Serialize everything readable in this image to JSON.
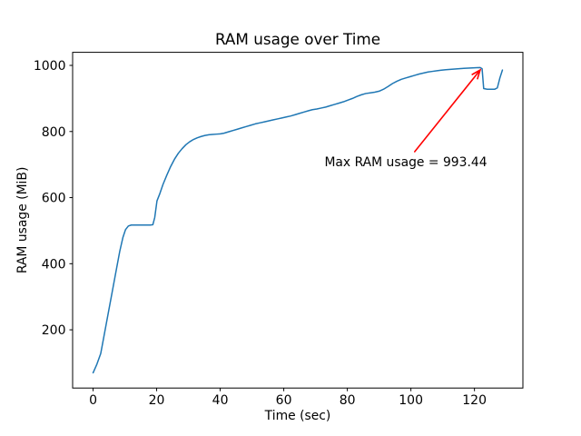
{
  "figure": {
    "title": "RAM usage over Time",
    "xlabel": "Time (sec)",
    "ylabel": "RAM usage (MiB)",
    "background_color": "#ffffff",
    "line_color": "#1f77b4",
    "annotation_color": "#ff0000",
    "axis_color": "#000000"
  },
  "chart_data": {
    "type": "line",
    "title": "RAM usage over Time",
    "xlabel": "Time (sec)",
    "ylabel": "RAM usage (MiB)",
    "grid": false,
    "legend": null,
    "xlim": [
      -6.44,
      135.24
    ],
    "ylim": [
      23.8,
      1039.6
    ],
    "xticks": [
      0,
      20,
      40,
      60,
      80,
      100,
      120
    ],
    "yticks": [
      200,
      400,
      600,
      800,
      1000
    ],
    "max_value": 993.44,
    "series": [
      {
        "name": "RAM usage (MiB)",
        "color": "#1f77b4",
        "x": [
          0,
          1.2,
          2.4,
          3.6,
          4.8,
          6,
          7.2,
          8.4,
          9.4,
          10.2,
          11.1,
          12,
          13.5,
          15,
          16.5,
          18,
          18.8,
          19.4,
          20.1,
          21,
          22,
          23.2,
          24.4,
          25.6,
          26.8,
          28,
          29.2,
          30.4,
          31.6,
          32.8,
          34,
          35.2,
          36.4,
          37.6,
          38.8,
          40,
          41.2,
          42.6,
          44,
          45.4,
          46.8,
          48.2,
          49.6,
          51,
          52.4,
          53.8,
          55.2,
          56.6,
          58,
          59.4,
          60.8,
          62.2,
          63.6,
          65,
          66.4,
          67.8,
          69,
          70.4,
          71.8,
          73.2,
          74.6,
          76,
          77.4,
          78.8,
          80.2,
          81.6,
          83,
          84.4,
          85.8,
          87.2,
          88.6,
          90,
          91.4,
          92.8,
          94.2,
          95.6,
          97,
          98.4,
          99.8,
          101.2,
          102.6,
          104,
          105.4,
          106.8,
          108.2,
          109.6,
          111,
          112.4,
          113.8,
          115.2,
          116.6,
          118,
          119.4,
          120.8,
          121.8,
          122.4,
          122.9,
          124,
          125.2,
          126.4,
          127.2,
          128,
          128.8
        ],
        "y": [
          70,
          96,
          128,
          190,
          252,
          314,
          376,
          438,
          480,
          503,
          514,
          517,
          517,
          517,
          517,
          517,
          518,
          540,
          590,
          612,
          640,
          668,
          694,
          716,
          734,
          748,
          760,
          769,
          776,
          781,
          785,
          788,
          790,
          791,
          792,
          793,
          795,
          799,
          803,
          807,
          811,
          815,
          819,
          823,
          826,
          829,
          832,
          835,
          838,
          841,
          844,
          847,
          851,
          855,
          859,
          863,
          866,
          868,
          871,
          874,
          878,
          882,
          886,
          890,
          895,
          900,
          906,
          911,
          915,
          917,
          919,
          922,
          928,
          936,
          945,
          952,
          958,
          962,
          966,
          970,
          974,
          977,
          980,
          982,
          984,
          985.5,
          987,
          988,
          989,
          990,
          991,
          991.8,
          992.6,
          993.2,
          993.44,
          990,
          930,
          928,
          928,
          928,
          932,
          962,
          986
        ]
      }
    ],
    "annotation": {
      "text": "Max RAM usage = 993.44",
      "color": "#ff0000",
      "arrow_tip_xy": [
        121.8,
        986
      ],
      "arrow_tail_xy": [
        101.2,
        739
      ],
      "text_center_xy": [
        98.4,
        709
      ]
    }
  }
}
